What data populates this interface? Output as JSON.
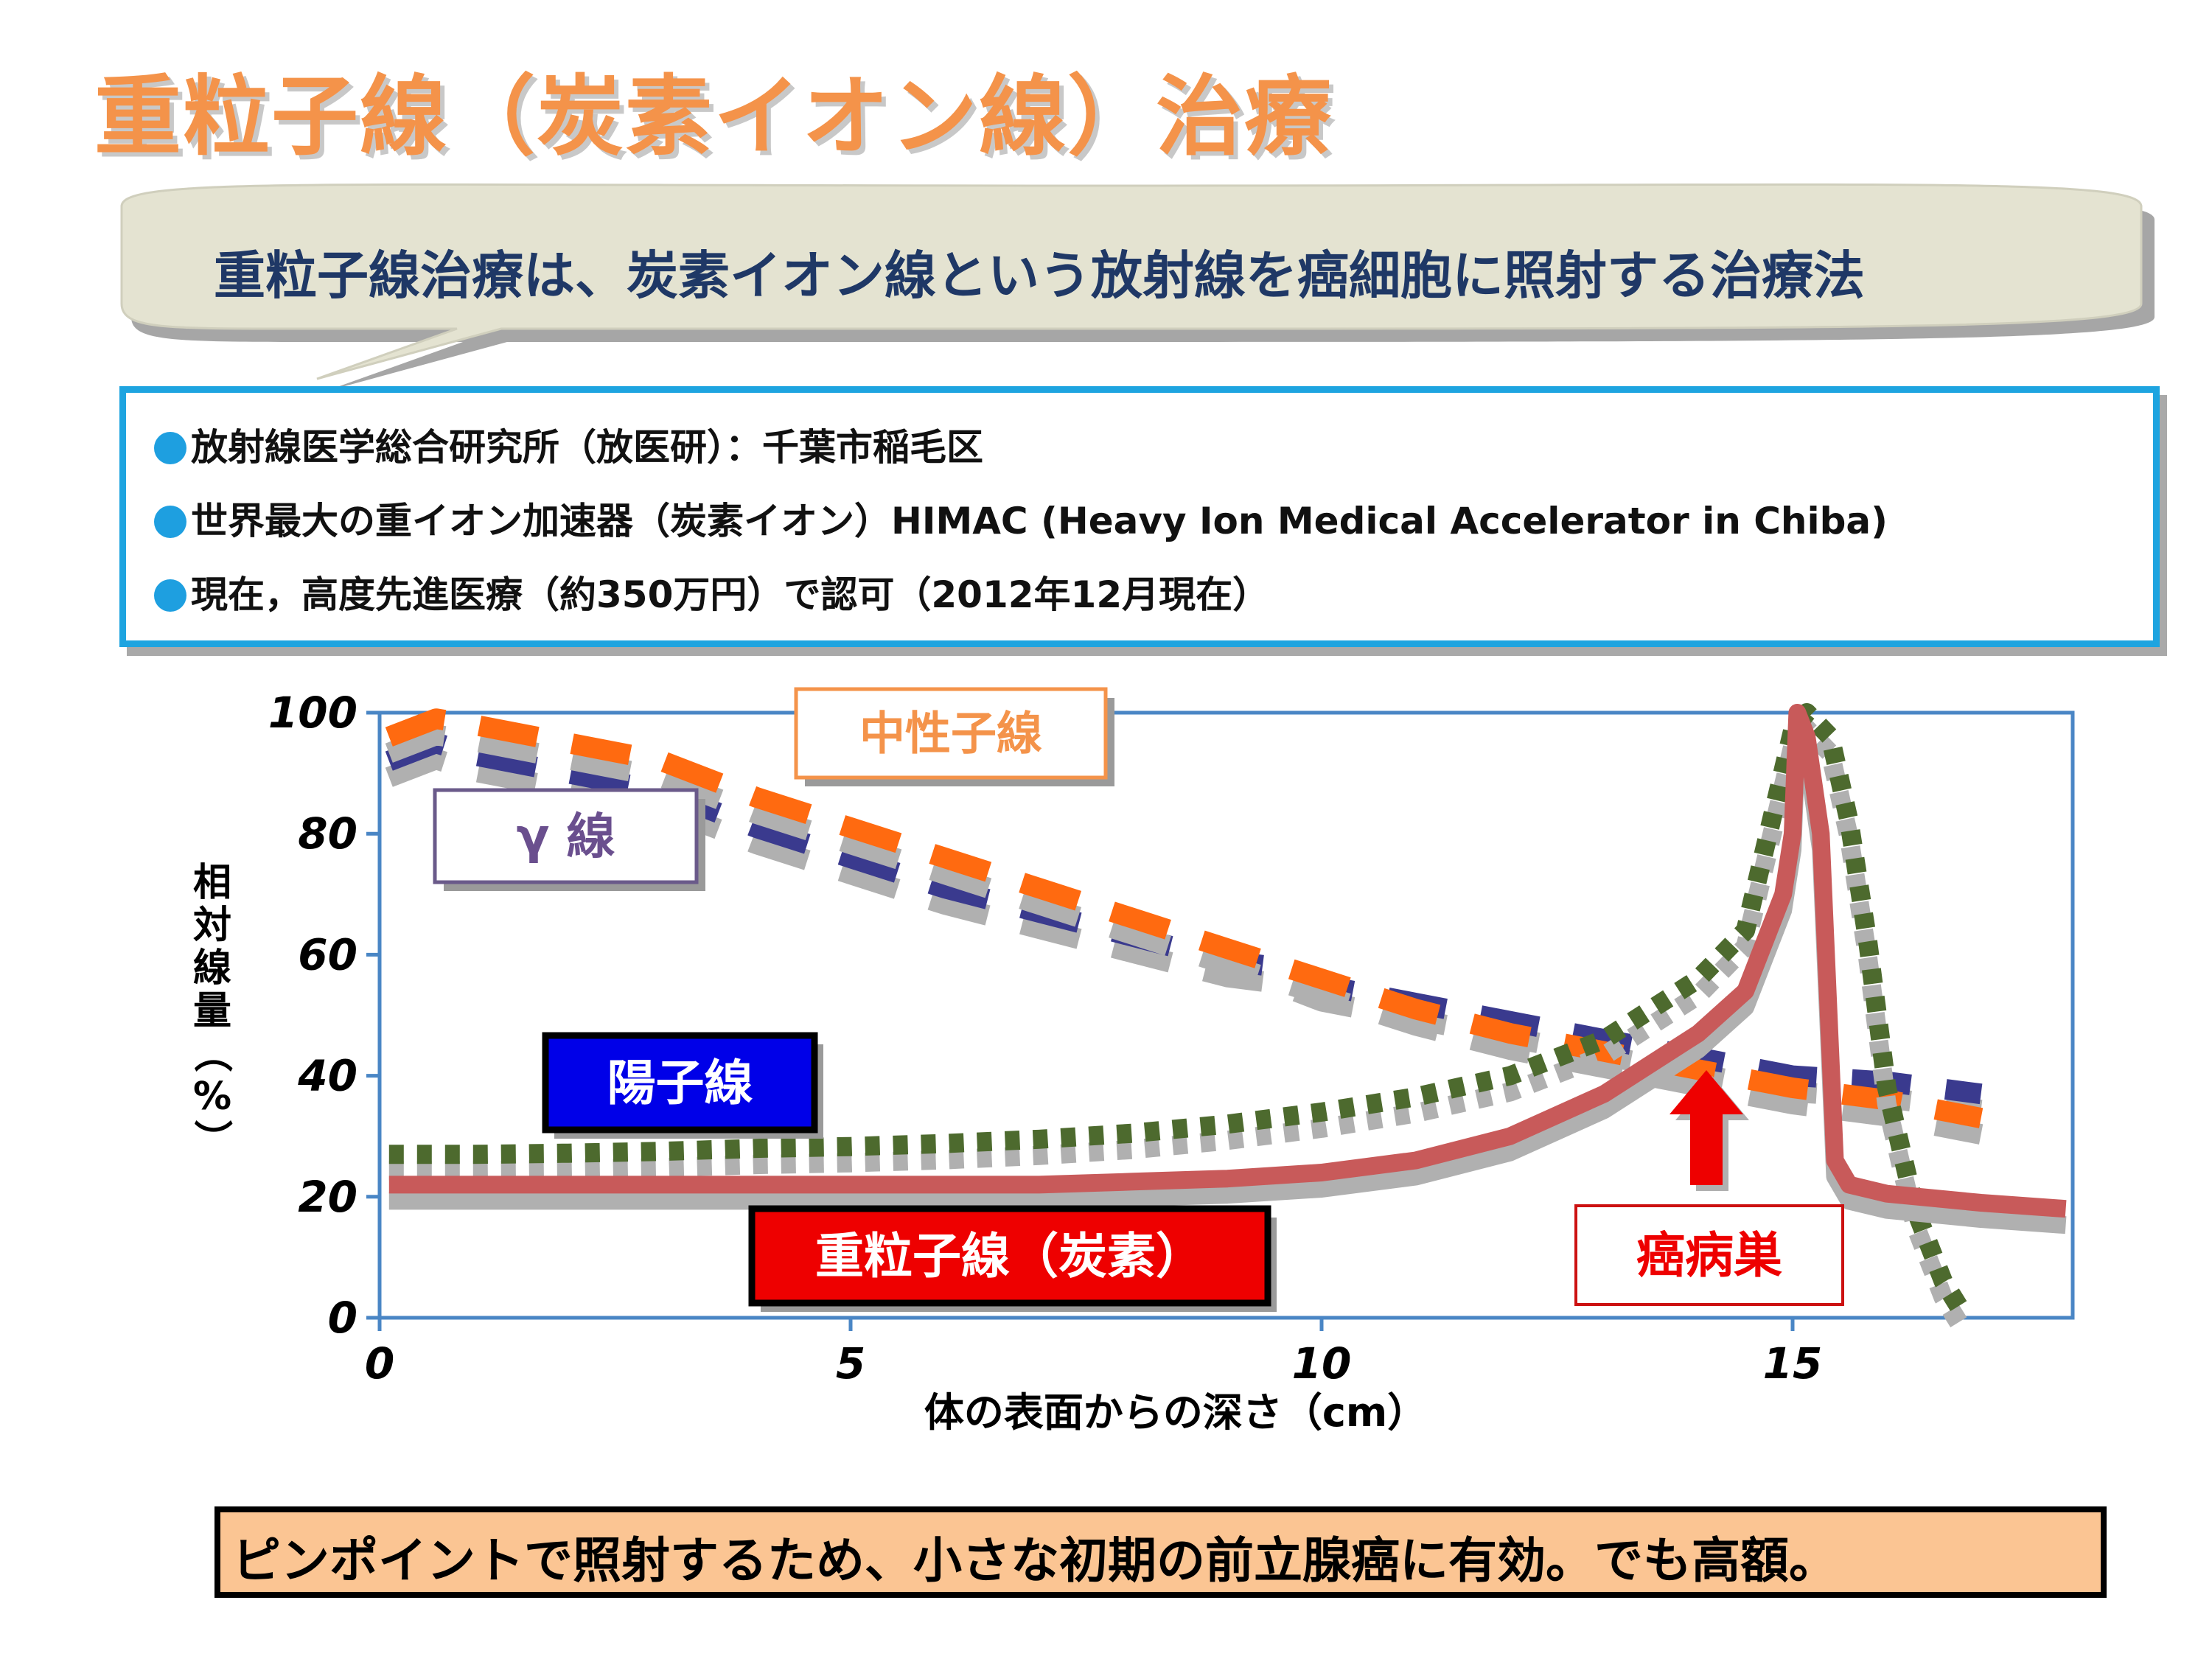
{
  "slide": {
    "title": "重粒子線（炭素イオン線）治療",
    "callout": "重粒子線治療は、炭素イオン線という放射線を癌細胞に照射する治療法",
    "bullets": [
      "放射線医学総合研究所（放医研）：千葉市稲毛区",
      "世界最大の重イオン加速器（炭素イオン）HIMAC (Heavy Ion Medical Accelerator in Chiba)",
      "現在，高度先進医療（約350万円）で認可（2012年12月現在）"
    ],
    "footer": "ピンポイントで照射するため、小さな初期の前立腺癌に有効。でも高額。"
  },
  "colors": {
    "title": "#f4934a",
    "bullet_dot": "#1e9fe0",
    "neutron": "#ff6a10",
    "gamma": "#3a3a8e",
    "proton": "#4d6a2e",
    "carbon": "#c85a5a",
    "axis": "#4a86c5",
    "arrow": "#ee0000"
  },
  "chart_data": {
    "type": "line",
    "xlabel": "体の表面からの深さ（cm）",
    "ylabel": "相対線量（%）",
    "xlim": [
      0,
      18
    ],
    "ylim": [
      0,
      100
    ],
    "x_ticks": [
      0,
      5,
      10,
      15
    ],
    "y_ticks": [
      0,
      20,
      40,
      60,
      80,
      100
    ],
    "grid": false,
    "series": [
      {
        "name": "中性子線",
        "key": "neutron",
        "points": [
          [
            0.1,
            96
          ],
          [
            0.6,
            99
          ],
          [
            1.0,
            98
          ],
          [
            2,
            95
          ],
          [
            3,
            92
          ],
          [
            4,
            86
          ],
          [
            5,
            81
          ],
          [
            6,
            76
          ],
          [
            7,
            71
          ],
          [
            8,
            66
          ],
          [
            9,
            61
          ],
          [
            10,
            56
          ],
          [
            11,
            51
          ],
          [
            12,
            47
          ],
          [
            13,
            44
          ],
          [
            14,
            41
          ],
          [
            15,
            38
          ],
          [
            16,
            36
          ],
          [
            17,
            33
          ]
        ]
      },
      {
        "name": "γ 線",
        "key": "gamma",
        "points": [
          [
            0.1,
            92
          ],
          [
            0.6,
            95
          ],
          [
            1.0,
            93
          ],
          [
            2,
            90
          ],
          [
            3,
            87
          ],
          [
            4,
            81
          ],
          [
            5,
            76
          ],
          [
            6,
            71
          ],
          [
            7,
            67
          ],
          [
            8,
            63
          ],
          [
            9,
            59
          ],
          [
            9.5,
            58
          ],
          [
            10,
            55
          ],
          [
            11,
            52
          ],
          [
            12,
            49
          ],
          [
            13,
            46
          ],
          [
            14,
            43
          ],
          [
            15,
            40
          ],
          [
            16,
            39
          ],
          [
            17,
            37
          ]
        ]
      },
      {
        "name": "陽子線",
        "key": "proton",
        "points": [
          [
            0.1,
            27
          ],
          [
            1,
            27
          ],
          [
            2,
            27.2
          ],
          [
            3,
            27.5
          ],
          [
            4,
            28
          ],
          [
            5,
            28.3
          ],
          [
            6,
            28.8
          ],
          [
            7,
            29.5
          ],
          [
            8,
            30.5
          ],
          [
            9,
            32
          ],
          [
            10,
            34
          ],
          [
            11,
            36.5
          ],
          [
            12,
            40
          ],
          [
            13,
            46
          ],
          [
            14,
            56
          ],
          [
            14.5,
            64
          ],
          [
            15,
            97
          ],
          [
            15.15,
            100
          ],
          [
            15.4,
            96
          ],
          [
            15.6,
            82
          ],
          [
            15.8,
            62
          ],
          [
            16.0,
            38
          ],
          [
            16.3,
            18
          ],
          [
            16.6,
            6
          ],
          [
            16.8,
            1
          ]
        ]
      },
      {
        "name": "重粒子線（炭素）",
        "key": "carbon",
        "points": [
          [
            0.1,
            22
          ],
          [
            1,
            22
          ],
          [
            2,
            22
          ],
          [
            3,
            22
          ],
          [
            4,
            22
          ],
          [
            5,
            22
          ],
          [
            6,
            22
          ],
          [
            7,
            22
          ],
          [
            8,
            22.5
          ],
          [
            9,
            23
          ],
          [
            10,
            24
          ],
          [
            11,
            26
          ],
          [
            12,
            30
          ],
          [
            13,
            37
          ],
          [
            14,
            47
          ],
          [
            14.5,
            54
          ],
          [
            14.9,
            70
          ],
          [
            15.0,
            80
          ],
          [
            15.05,
            100
          ],
          [
            15.15,
            96
          ],
          [
            15.3,
            80
          ],
          [
            15.45,
            26
          ],
          [
            15.6,
            22
          ],
          [
            16,
            20.5
          ],
          [
            17,
            19
          ],
          [
            17.9,
            18
          ]
        ]
      }
    ],
    "labels": {
      "neutron": "中性子線",
      "gamma": "γ 線",
      "proton": "陽子線",
      "carbon": "重粒子線（炭素）",
      "tumor": "癌病巣"
    },
    "tumor_depth": 15
  }
}
